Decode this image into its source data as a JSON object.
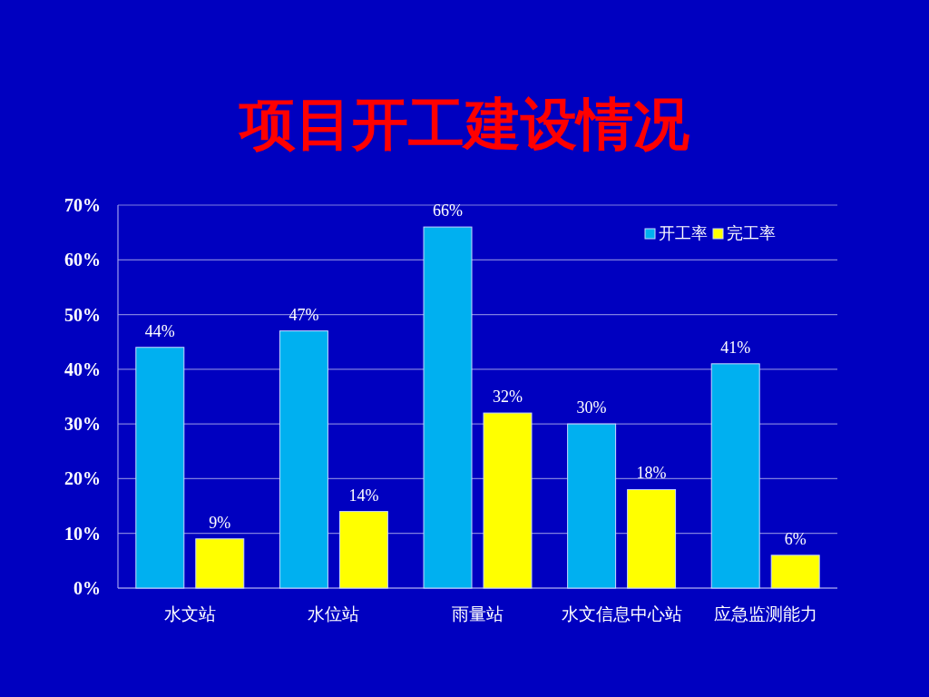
{
  "chart_data": {
    "type": "bar",
    "title": "项目开工建设情况",
    "categories": [
      "水文站",
      "水位站",
      "雨量站",
      "水文信息中心站",
      "应急监测能力"
    ],
    "series": [
      {
        "name": "开工率",
        "color": "#00b0f0",
        "values": [
          44,
          47,
          66,
          30,
          41
        ],
        "value_labels": [
          "44%",
          "47%",
          "66%",
          "30%",
          "41%"
        ]
      },
      {
        "name": "完工率",
        "color": "#ffff00",
        "values": [
          9,
          14,
          32,
          18,
          6
        ],
        "value_labels": [
          "9%",
          "14%",
          "32%",
          "18%",
          "6%"
        ]
      }
    ],
    "ylim": [
      0,
      70
    ],
    "yticks": [
      {
        "value": 0,
        "label": "0%"
      },
      {
        "value": 10,
        "label": "10%"
      },
      {
        "value": 20,
        "label": "20%"
      },
      {
        "value": 30,
        "label": "30%"
      },
      {
        "value": 40,
        "label": "40%"
      },
      {
        "value": 50,
        "label": "50%"
      },
      {
        "value": 60,
        "label": "60%"
      },
      {
        "value": 70,
        "label": "70%"
      }
    ],
    "grid": "y",
    "legend": "top right"
  }
}
